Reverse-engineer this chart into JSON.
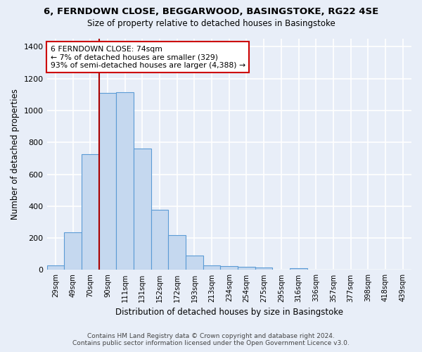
{
  "title": "6, FERNDOWN CLOSE, BEGGARWOOD, BASINGSTOKE, RG22 4SE",
  "subtitle": "Size of property relative to detached houses in Basingstoke",
  "xlabel": "Distribution of detached houses by size in Basingstoke",
  "ylabel": "Number of detached properties",
  "footer_line1": "Contains HM Land Registry data © Crown copyright and database right 2024.",
  "footer_line2": "Contains public sector information licensed under the Open Government Licence v3.0.",
  "categories": [
    "29sqm",
    "49sqm",
    "70sqm",
    "90sqm",
    "111sqm",
    "131sqm",
    "152sqm",
    "172sqm",
    "193sqm",
    "213sqm",
    "234sqm",
    "254sqm",
    "275sqm",
    "295sqm",
    "316sqm",
    "336sqm",
    "357sqm",
    "377sqm",
    "398sqm",
    "418sqm",
    "439sqm"
  ],
  "values": [
    30,
    235,
    725,
    1110,
    1115,
    760,
    375,
    220,
    90,
    30,
    25,
    20,
    15,
    0,
    10,
    0,
    0,
    0,
    0,
    0,
    0
  ],
  "bar_color": "#c5d8ef",
  "bar_edge_color": "#5b9bd5",
  "background_color": "#e8eef8",
  "grid_color": "#ffffff",
  "vline_color": "#aa0000",
  "annotation_text": "6 FERNDOWN CLOSE: 74sqm\n← 7% of detached houses are smaller (329)\n93% of semi-detached houses are larger (4,388) →",
  "annotation_box_color": "#ffffff",
  "annotation_box_edge_color": "#cc0000",
  "ylim": [
    0,
    1450
  ],
  "yticks": [
    0,
    200,
    400,
    600,
    800,
    1000,
    1200,
    1400
  ],
  "vline_index": 2.5
}
